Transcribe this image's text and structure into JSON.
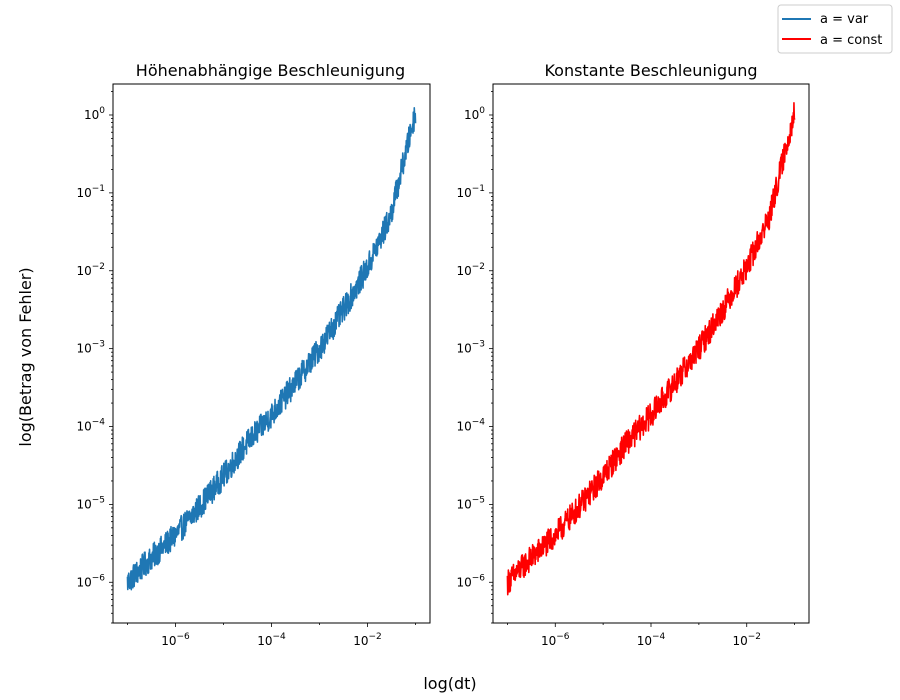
{
  "figure": {
    "xlabel": "log(dt)",
    "ylabel": "log(Betrag von Fehler)"
  },
  "legend": {
    "placement": "top-right",
    "entries": [
      {
        "label": "a = var",
        "color": "#1f77b4"
      },
      {
        "label": "a = const",
        "color": "#ff0000"
      }
    ]
  },
  "chart_data": [
    {
      "type": "line",
      "title": "Höhenabhängige Beschleunigung",
      "xscale": "log",
      "yscale": "log",
      "xlim": [
        5e-08,
        0.2
      ],
      "ylim": [
        3e-07,
        2.5
      ],
      "xticks": [
        1e-06,
        0.0001,
        0.01
      ],
      "xtick_labels": [
        {
          "base": "10",
          "exp": "−6"
        },
        {
          "base": "10",
          "exp": "−4"
        },
        {
          "base": "10",
          "exp": "−2"
        }
      ],
      "yticks": [
        1e-06,
        1e-05,
        0.0001,
        0.001,
        0.01,
        0.1,
        1
      ],
      "ytick_labels": [
        {
          "base": "10",
          "exp": "−6"
        },
        {
          "base": "10",
          "exp": "−5"
        },
        {
          "base": "10",
          "exp": "−4"
        },
        {
          "base": "10",
          "exp": "−3"
        },
        {
          "base": "10",
          "exp": "−2"
        },
        {
          "base": "10",
          "exp": "−1"
        },
        {
          "base": "10",
          "exp": "0"
        }
      ],
      "grid": false,
      "series": [
        {
          "name": "a = var",
          "color": "#1f77b4",
          "x": [
            1e-07,
            3e-07,
            1e-06,
            3e-06,
            1e-05,
            3e-05,
            0.0001,
            0.0003,
            0.001,
            0.003,
            0.01,
            0.03,
            0.1
          ],
          "y": [
            1e-06,
            2e-06,
            4e-06,
            9e-06,
            2.3e-05,
            6e-05,
            0.00014,
            0.00035,
            0.001,
            0.003,
            0.011,
            0.05,
            1.1
          ]
        }
      ]
    },
    {
      "type": "line",
      "title": "Konstante Beschleunigung",
      "xscale": "log",
      "yscale": "log",
      "xlim": [
        5e-08,
        0.2
      ],
      "ylim": [
        3e-07,
        2.5
      ],
      "xticks": [
        1e-06,
        0.0001,
        0.01
      ],
      "xtick_labels": [
        {
          "base": "10",
          "exp": "−6"
        },
        {
          "base": "10",
          "exp": "−4"
        },
        {
          "base": "10",
          "exp": "−2"
        }
      ],
      "yticks": [
        1e-06,
        1e-05,
        0.0001,
        0.001,
        0.01,
        0.1,
        1
      ],
      "ytick_labels": [
        {
          "base": "10",
          "exp": "−6"
        },
        {
          "base": "10",
          "exp": "−5"
        },
        {
          "base": "10",
          "exp": "−4"
        },
        {
          "base": "10",
          "exp": "−3"
        },
        {
          "base": "10",
          "exp": "−2"
        },
        {
          "base": "10",
          "exp": "−1"
        },
        {
          "base": "10",
          "exp": "0"
        }
      ],
      "grid": false,
      "series": [
        {
          "name": "a = const",
          "color": "#ff0000",
          "x": [
            1e-07,
            3e-07,
            1e-06,
            3e-06,
            1e-05,
            3e-05,
            0.0001,
            0.0003,
            0.001,
            0.003,
            0.01,
            0.03,
            0.1
          ],
          "y": [
            1e-06,
            2e-06,
            4e-06,
            9e-06,
            2.3e-05,
            6e-05,
            0.00014,
            0.00035,
            0.001,
            0.003,
            0.011,
            0.05,
            1.1
          ]
        }
      ]
    }
  ]
}
